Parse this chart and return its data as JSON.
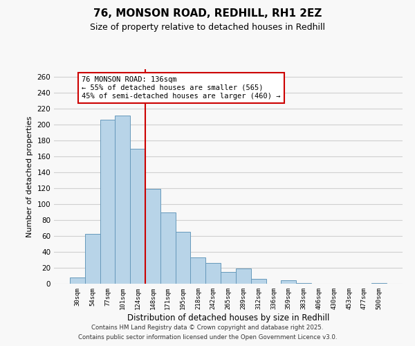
{
  "title1": "76, MONSON ROAD, REDHILL, RH1 2EZ",
  "title2": "Size of property relative to detached houses in Redhill",
  "xlabel": "Distribution of detached houses by size in Redhill",
  "ylabel": "Number of detached properties",
  "bar_labels": [
    "30sqm",
    "54sqm",
    "77sqm",
    "101sqm",
    "124sqm",
    "148sqm",
    "171sqm",
    "195sqm",
    "218sqm",
    "242sqm",
    "265sqm",
    "289sqm",
    "312sqm",
    "336sqm",
    "359sqm",
    "383sqm",
    "406sqm",
    "430sqm",
    "453sqm",
    "477sqm",
    "500sqm"
  ],
  "bar_values": [
    8,
    63,
    206,
    212,
    170,
    119,
    90,
    65,
    33,
    26,
    15,
    19,
    6,
    0,
    4,
    1,
    0,
    0,
    0,
    0,
    1
  ],
  "bar_color": "#b8d4e8",
  "bar_edge_color": "#6699bb",
  "grid_color": "#d0d0d0",
  "background_color": "#f8f8f8",
  "vline_x_index": 4.5,
  "vline_color": "#cc0000",
  "annotation_line1": "76 MONSON ROAD: 136sqm",
  "annotation_line2": "← 55% of detached houses are smaller (565)",
  "annotation_line3": "45% of semi-detached houses are larger (460) →",
  "annotation_box_facecolor": "#ffffff",
  "annotation_box_edgecolor": "#cc0000",
  "ylim": [
    0,
    270
  ],
  "yticks": [
    0,
    20,
    40,
    60,
    80,
    100,
    120,
    140,
    160,
    180,
    200,
    220,
    240,
    260
  ],
  "footer1": "Contains HM Land Registry data © Crown copyright and database right 2025.",
  "footer2": "Contains public sector information licensed under the Open Government Licence v3.0."
}
